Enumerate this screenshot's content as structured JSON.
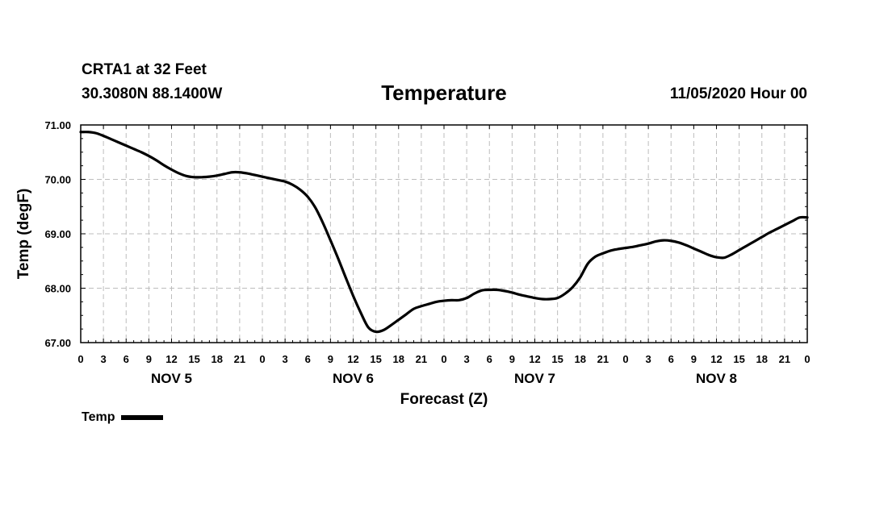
{
  "header": {
    "station": "CRTA1 at 32 Feet",
    "latlon": "30.3080N 88.1400W",
    "title": "Temperature",
    "runtime": "11/05/2020 Hour 00"
  },
  "chart_data": {
    "type": "line",
    "title": "Temperature",
    "xlabel": "Forecast (Z)",
    "ylabel": "Temp (degF)",
    "ylim": [
      67.0,
      71.0
    ],
    "xlim": [
      0,
      96
    ],
    "grid": true,
    "yticks": [
      "67.00",
      "68.00",
      "69.00",
      "70.00",
      "71.00"
    ],
    "ytick_values": [
      67,
      68,
      69,
      70,
      71
    ],
    "xtick_labels": [
      "0",
      "3",
      "6",
      "9",
      "12",
      "15",
      "18",
      "21",
      "0",
      "3",
      "6",
      "9",
      "12",
      "15",
      "18",
      "21",
      "0",
      "3",
      "6",
      "9",
      "12",
      "15",
      "18",
      "21",
      "0",
      "3",
      "6",
      "9",
      "12",
      "15",
      "18",
      "21",
      "0"
    ],
    "day_labels": [
      {
        "label": "NOV 5",
        "hour": 12
      },
      {
        "label": "NOV 6",
        "hour": 36
      },
      {
        "label": "NOV 7",
        "hour": 60
      },
      {
        "label": "NOV 8",
        "hour": 84
      }
    ],
    "series": [
      {
        "name": "Temp",
        "color": "#000000",
        "x": [
          0,
          1,
          2,
          3,
          4,
          5,
          6,
          7,
          8,
          9,
          10,
          11,
          12,
          13,
          14,
          15,
          16,
          17,
          18,
          19,
          20,
          21,
          22,
          23,
          24,
          25,
          26,
          27,
          28,
          29,
          30,
          31,
          32,
          33,
          34,
          35,
          36,
          37,
          38,
          39,
          40,
          41,
          42,
          43,
          44,
          45,
          46,
          47,
          48,
          49,
          50,
          51,
          52,
          53,
          54,
          55,
          56,
          57,
          58,
          59,
          60,
          61,
          62,
          63,
          64,
          65,
          66,
          67,
          68,
          69,
          70,
          71,
          72,
          73,
          74,
          75,
          76,
          77,
          78,
          79,
          80,
          81,
          82,
          83,
          84,
          85,
          86,
          87,
          88,
          89,
          90,
          91,
          92,
          93,
          94,
          95,
          96
        ],
        "values": [
          70.87,
          70.87,
          70.85,
          70.8,
          70.74,
          70.68,
          70.62,
          70.56,
          70.5,
          70.43,
          70.35,
          70.26,
          70.18,
          70.11,
          70.06,
          70.04,
          70.04,
          70.05,
          70.07,
          70.1,
          70.13,
          70.13,
          70.11,
          70.08,
          70.05,
          70.02,
          69.99,
          69.96,
          69.9,
          69.81,
          69.68,
          69.48,
          69.2,
          68.88,
          68.55,
          68.2,
          67.86,
          67.55,
          67.28,
          67.2,
          67.23,
          67.32,
          67.42,
          67.52,
          67.62,
          67.67,
          67.71,
          67.75,
          67.77,
          67.78,
          67.78,
          67.82,
          67.9,
          67.96,
          67.97,
          67.97,
          67.95,
          67.92,
          67.88,
          67.85,
          67.82,
          67.8,
          67.8,
          67.82,
          67.9,
          68.02,
          68.2,
          68.45,
          68.58,
          68.64,
          68.69,
          68.72,
          68.74,
          68.76,
          68.79,
          68.82,
          68.86,
          68.88,
          68.87,
          68.84,
          68.79,
          68.73,
          68.67,
          68.61,
          68.57,
          68.56,
          68.62,
          68.7,
          68.78,
          68.86,
          68.94,
          69.02,
          69.09,
          69.16,
          69.23,
          69.3,
          69.3
        ]
      }
    ]
  },
  "legend": {
    "label": "Temp"
  }
}
